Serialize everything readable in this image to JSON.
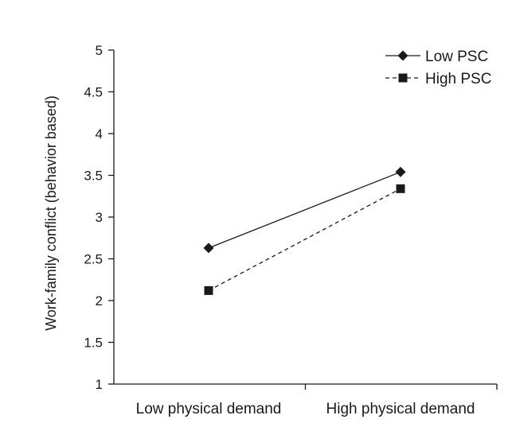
{
  "chart_data": {
    "type": "line",
    "title": "",
    "xlabel": "",
    "ylabel": "Work-family conflict (behavior based)",
    "categories": [
      "Low physical demand",
      "High physical demand"
    ],
    "ylim": [
      1,
      5
    ],
    "yticks": [
      "1",
      "1.5",
      "2",
      "2.5",
      "3",
      "3.5",
      "4",
      "4.5",
      "5"
    ],
    "grid": false,
    "legend_position": "top-right",
    "series": [
      {
        "name": "Low PSC",
        "values": [
          2.63,
          3.54
        ],
        "line_style": "solid",
        "marker": "diamond",
        "color": "#1a1a1a"
      },
      {
        "name": "High PSC",
        "values": [
          2.12,
          3.34
        ],
        "line_style": "dashed",
        "marker": "square",
        "color": "#1a1a1a"
      }
    ]
  }
}
